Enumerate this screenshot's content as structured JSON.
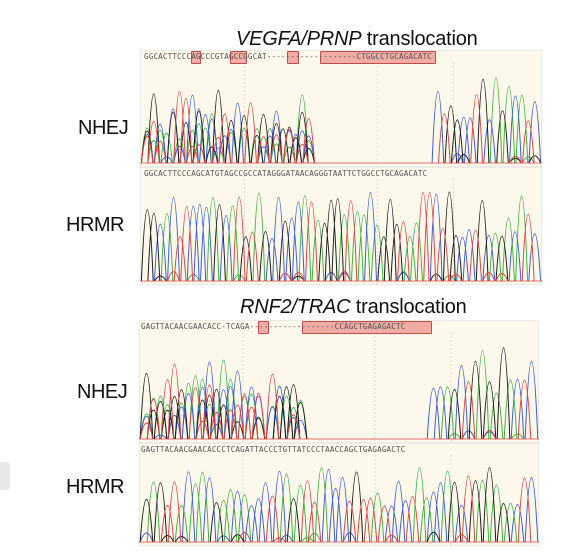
{
  "panels": [
    {
      "title_italic": "VEGFA/PRNP",
      "title_rest": " translocation",
      "nhej_label": "NHEJ",
      "hrmr_label": "HRMR",
      "seq_nhej": "GGCACTTCCCAGCCCGTAGCCGGCAT-------------------CTGGCCTGCAGACATC",
      "seq_hrmr": "GGCACTTCCCAGCATGTAGCCGCCATAGGGATAACAGGGTAATTCTGGCCTGCAGACATC"
    },
    {
      "title_italic": "RNF2/TRAC",
      "title_rest": " translocation",
      "nhej_label": "NHEJ",
      "hrmr_label": "HRMR",
      "seq_nhej": "GAGTTACAACGAACACC-TCAGA------------------CCAGCTGAGAGACTC",
      "seq_hrmr": "GAGTTACAACGAACACCCTCAGATTACCCTGTTATCCCTAACCAGCTGAGAGACTC"
    }
  ],
  "colors": {
    "A": "#3db33d",
    "C": "#3c5bd6",
    "G": "#1a1a1a",
    "T": "#e0413f",
    "panel_bg": "#fcf8ec",
    "highlight": "#e86e6e"
  }
}
